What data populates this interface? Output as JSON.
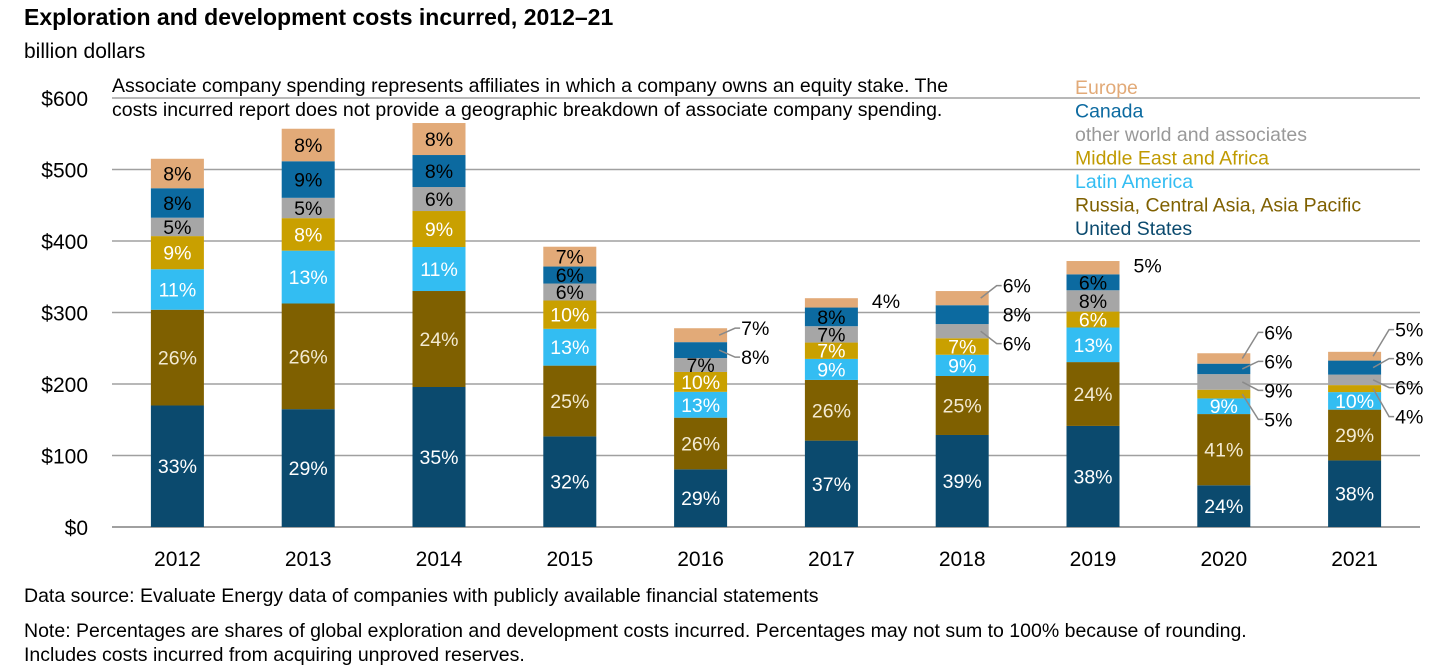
{
  "chart_data": {
    "type": "bar",
    "stacked": true,
    "title": "Exploration and development costs incurred, 2012–21",
    "ylabel": "billion dollars",
    "ylim": [
      0,
      600
    ],
    "yticks": [
      0,
      100,
      200,
      300,
      400,
      500,
      600
    ],
    "ytick_labels": [
      "$0",
      "$100",
      "$200",
      "$300",
      "$400",
      "$500",
      "$600"
    ],
    "grid": true,
    "legend_placement": "top-right",
    "categories": [
      "2012",
      "2013",
      "2014",
      "2015",
      "2016",
      "2017",
      "2018",
      "2019",
      "2020",
      "2021"
    ],
    "totals": [
      515,
      557,
      565,
      392,
      278,
      320,
      330,
      372,
      243,
      245
    ],
    "series": [
      {
        "name": "United States",
        "color": "#0b4a6e",
        "label_color": "#ffffff",
        "shares": [
          33,
          29,
          35,
          32,
          29,
          37,
          39,
          38,
          24,
          38
        ]
      },
      {
        "name": "Russia, Central Asia, Asia Pacific",
        "color": "#7f6000",
        "label_color": "#f3ead2",
        "shares": [
          26,
          26,
          24,
          25,
          26,
          26,
          25,
          24,
          41,
          29
        ]
      },
      {
        "name": "Latin America",
        "color": "#33bdf2",
        "label_color": "#ffffff",
        "shares": [
          11,
          13,
          11,
          13,
          13,
          9,
          9,
          13,
          9,
          10
        ]
      },
      {
        "name": "Middle East and Africa",
        "color": "#c9a000",
        "label_color": "#ffffff",
        "shares": [
          9,
          8,
          9,
          10,
          10,
          7,
          7,
          6,
          5,
          4
        ]
      },
      {
        "name": "other world and associates",
        "color": "#a6a6a6",
        "label_color": "#000000",
        "shares": [
          5,
          5,
          6,
          6,
          7,
          7,
          6,
          8,
          9,
          6
        ]
      },
      {
        "name": "Canada",
        "color": "#0c6aa0",
        "label_color": "#000000",
        "shares": [
          8,
          9,
          8,
          6,
          8,
          8,
          8,
          6,
          6,
          8
        ]
      },
      {
        "name": "Europe",
        "color": "#e2aa78",
        "label_color": "#000000",
        "shares": [
          8,
          8,
          8,
          7,
          7,
          4,
          6,
          5,
          6,
          5
        ]
      }
    ],
    "outside_labels": {
      "2016": [
        5,
        6
      ],
      "2017": [
        6
      ],
      "2018": [
        4,
        5,
        6
      ],
      "2019": [
        6
      ],
      "2020": [
        3,
        4,
        5,
        6
      ],
      "2021": [
        3,
        4,
        5,
        6
      ]
    },
    "legend_order": [
      6,
      5,
      4,
      3,
      2,
      1,
      0
    ],
    "annotation": [
      "Associate company spending represents affiliates in which a company owns an equity stake. The",
      "costs incurred report does not provide a geographic breakdown of associate company spending."
    ]
  },
  "footer": {
    "source": "Data source: Evaluate Energy data of companies with publicly available financial statements",
    "note1": "Note: Percentages are shares of global exploration and development costs incurred. Percentages may not sum to 100% because of rounding.",
    "note2": "Includes costs incurred from acquiring unproved reserves."
  }
}
